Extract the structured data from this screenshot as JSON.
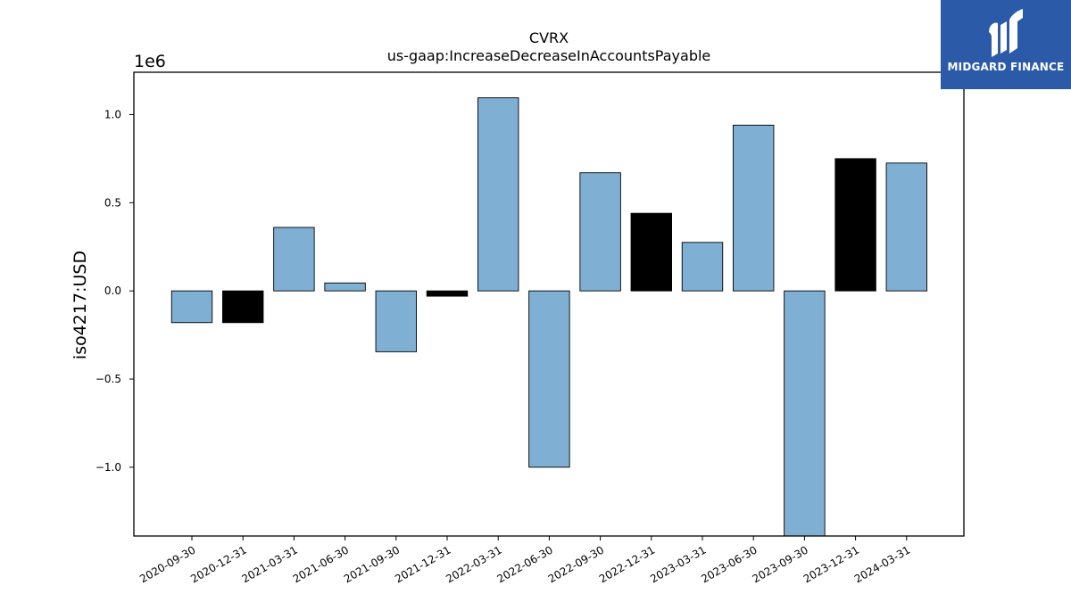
{
  "logo": {
    "text": "MIDGARD FINANCE",
    "color": "#2b5aa8"
  },
  "chart_data": {
    "type": "bar",
    "title": "CVRX",
    "subtitle": "us-gaap:IncreaseDecreaseInAccountsPayable",
    "ylabel": "iso4217:USD",
    "y_scale_label": "1e6",
    "ylim": [
      -1.39,
      1.24
    ],
    "yticks": [
      -1.0,
      -0.5,
      0.0,
      0.5,
      1.0
    ],
    "ytick_labels": [
      "−1.0",
      "−0.5",
      "0.0",
      "0.5",
      "1.0"
    ],
    "categories": [
      "2020-09-30",
      "2020-12-31",
      "2021-03-31",
      "2021-06-30",
      "2021-09-30",
      "2021-12-31",
      "2022-03-31",
      "2022-06-30",
      "2022-09-30",
      "2022-12-31",
      "2023-03-31",
      "2023-06-30",
      "2023-09-30",
      "2023-12-31",
      "2024-03-31"
    ],
    "values": [
      -0.18,
      -0.18,
      0.36,
      0.045,
      -0.345,
      -0.03,
      1.095,
      -1.0,
      0.67,
      0.44,
      0.275,
      0.94,
      -1.39,
      0.75,
      0.725
    ],
    "bar_colors": [
      "#7fb0d4",
      "#000000",
      "#7fb0d4",
      "#7fb0d4",
      "#7fb0d4",
      "#000000",
      "#7fb0d4",
      "#7fb0d4",
      "#7fb0d4",
      "#000000",
      "#7fb0d4",
      "#7fb0d4",
      "#7fb0d4",
      "#000000",
      "#7fb0d4"
    ],
    "grid": false
  }
}
